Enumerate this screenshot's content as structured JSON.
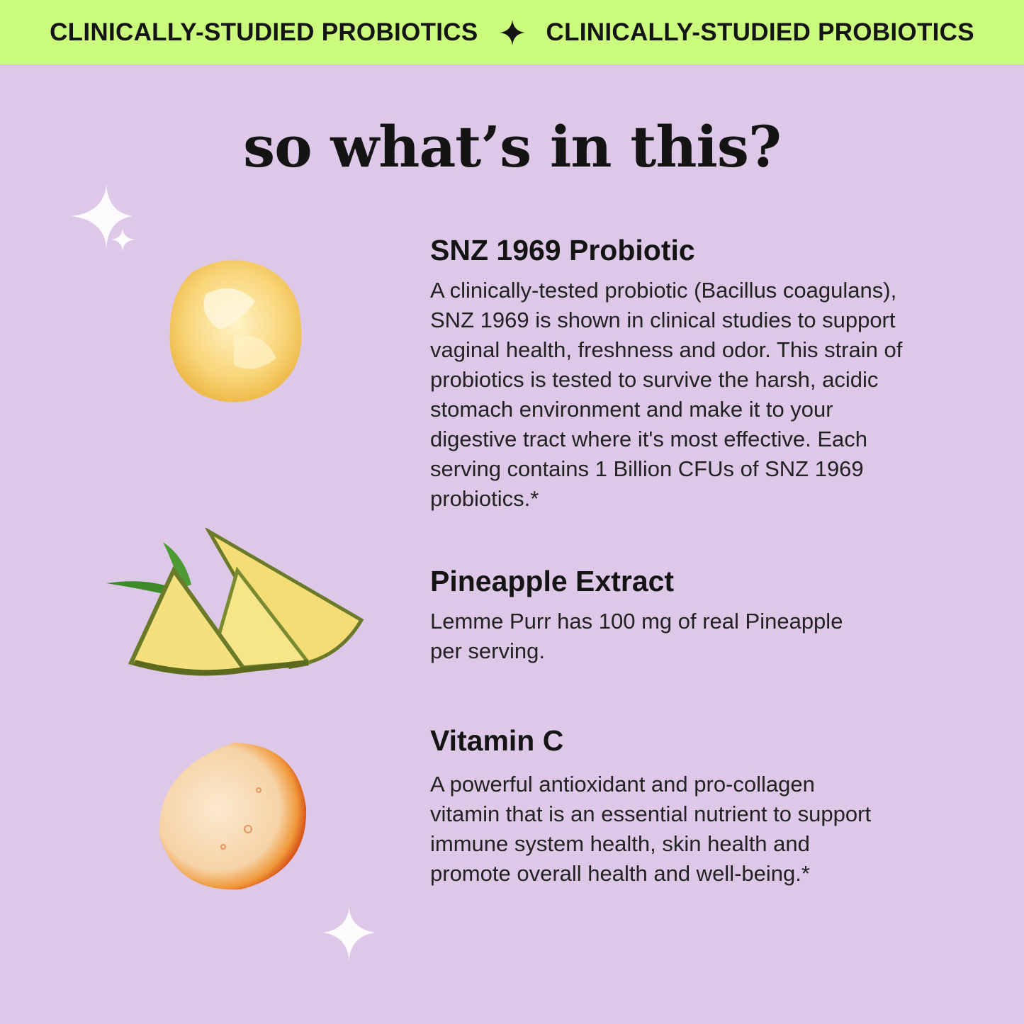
{
  "banner": {
    "text_left": "CLINICALLY-STUDIED PROBIOTICS",
    "text_right": "CLINICALLY-STUDIED PROBIOTICS",
    "separator_icon": "four-point-star-icon",
    "color": "#cbfb7d"
  },
  "title": "so what’s in this?",
  "background_color": "#dec8e8",
  "ingredients": [
    {
      "name": "SNZ 1969 Probiotic",
      "image": "probiotic-powder-splash",
      "lines": [
        "A clinically-tested probiotic (Bacillus coagulans),",
        "SNZ 1969 is shown in clinical studies to support",
        "vaginal health, freshness and odor. This strain of",
        "probiotics is tested to survive the harsh, acidic",
        "stomach environment and make it to your",
        "digestive tract where it's most effective. Each",
        "serving contains 1 Billion CFUs of SNZ 1969",
        "probiotics.*"
      ]
    },
    {
      "name": "Pineapple Extract",
      "image": "pineapple-slices",
      "lines": [
        "Lemme Purr has 100 mg of real Pineapple",
        "per serving."
      ]
    },
    {
      "name": "Vitamin C",
      "image": "vitamin-c-serum-drop",
      "lines": [
        "A powerful antioxidant and pro-collagen",
        "vitamin that is an essential nutrient to support",
        "immune system health, skin health and",
        "promote overall health and well-being.*"
      ]
    }
  ]
}
